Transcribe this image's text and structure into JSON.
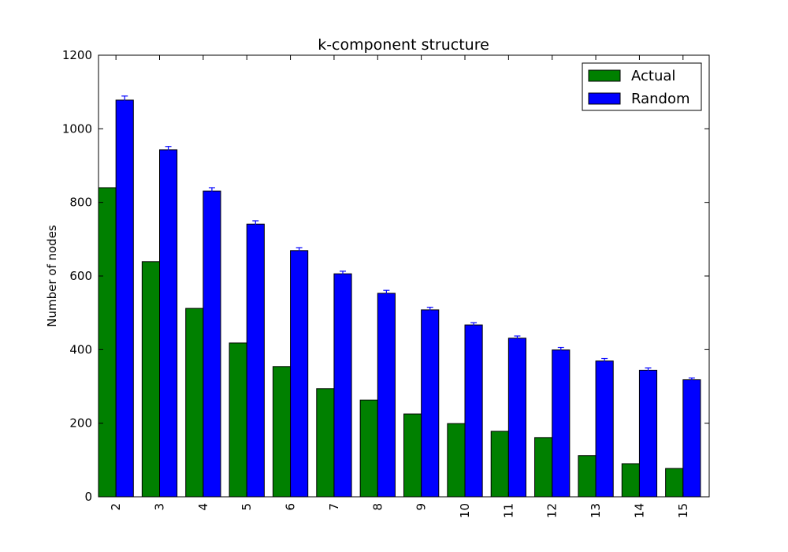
{
  "chart_data": {
    "type": "bar",
    "title": "k-component structure",
    "xlabel": "",
    "ylabel": "Number of nodes",
    "ylim": [
      0,
      1200
    ],
    "yticks": [
      0,
      200,
      400,
      600,
      800,
      1000,
      1200
    ],
    "grid": false,
    "legend_position": "top-right",
    "categories": [
      "2",
      "3",
      "4",
      "5",
      "6",
      "7",
      "8",
      "9",
      "10",
      "11",
      "12",
      "13",
      "14",
      "15"
    ],
    "series": [
      {
        "name": "Actual",
        "color": "#008000",
        "values": [
          840,
          639,
          512,
          418,
          354,
          294,
          263,
          225,
          199,
          178,
          161,
          112,
          90,
          77
        ]
      },
      {
        "name": "Random",
        "color": "#0000ff",
        "values": [
          1078,
          943,
          831,
          741,
          669,
          606,
          553,
          508,
          467,
          431,
          399,
          369,
          344,
          318
        ],
        "errors": [
          11,
          9,
          9,
          9,
          8,
          7,
          8,
          7,
          6,
          6,
          7,
          7,
          6,
          5
        ]
      }
    ]
  }
}
